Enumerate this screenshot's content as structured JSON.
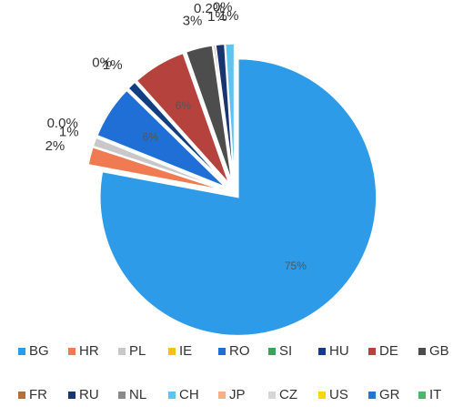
{
  "chart_data": {
    "type": "pie",
    "categories": [
      "BG",
      "HR",
      "PL",
      "IE",
      "RO",
      "SI",
      "HU",
      "DE",
      "GB",
      "FR",
      "RU",
      "NL",
      "CH",
      "JP",
      "CZ",
      "US",
      "GR",
      "IT"
    ],
    "values": [
      75,
      2,
      1,
      0,
      6,
      0,
      1,
      6,
      3,
      0.2,
      1,
      0,
      1,
      0,
      0,
      0,
      0,
      0
    ],
    "value_labels": [
      "75%",
      "2%",
      "1%",
      "0.0%",
      "6%",
      "0%",
      "1%",
      "6%",
      "3%",
      "0.2%",
      "1%",
      "0%",
      "1%",
      null,
      null,
      null,
      null,
      null
    ],
    "colors": [
      "#2e9be8",
      "#f07a52",
      "#c8c8c8",
      "#f2c40f",
      "#1f6fd6",
      "#3aa35a",
      "#123f82",
      "#b5423c",
      "#4d4d4d",
      "#b5703a",
      "#1a3470",
      "#8a8a8a",
      "#5ec4ef",
      "#f3b08a",
      "#d6d6d6",
      "#f5d800",
      "#2178d0",
      "#4fb56c"
    ],
    "legend": "bottom"
  }
}
